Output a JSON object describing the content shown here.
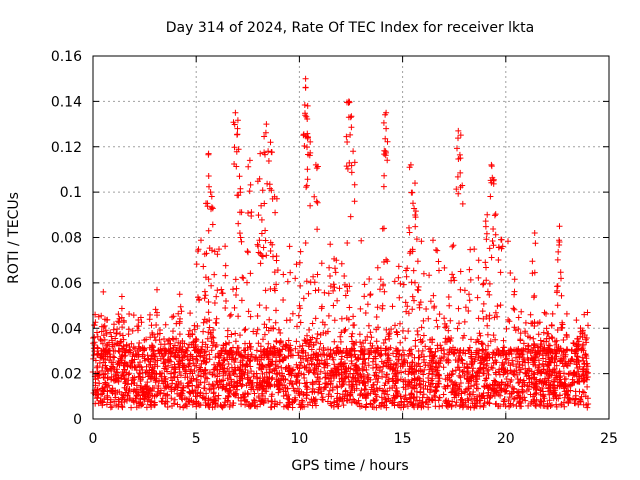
{
  "chart_data": {
    "type": "scatter",
    "title": "Day 314 of 2024, Rate Of TEC Index for receiver lkta",
    "xlabel": "GPS time / hours",
    "ylabel": "ROTI / TECUs",
    "xlim": [
      0,
      25
    ],
    "ylim": [
      0,
      0.16
    ],
    "x_ticks": [
      "0",
      "5",
      "10",
      "15",
      "20",
      "25"
    ],
    "y_ticks": [
      "0",
      "0.02",
      "0.04",
      "0.06",
      "0.08",
      "0.1",
      "0.12",
      "0.14",
      "0.16"
    ],
    "x_tick_values": [
      0,
      5,
      10,
      15,
      20,
      25
    ],
    "y_tick_values": [
      0,
      0.02,
      0.04,
      0.06,
      0.08,
      0.1,
      0.12,
      0.14,
      0.16
    ],
    "grid": true,
    "marker": "+",
    "color": "#ff0000",
    "x_data_range": [
      0,
      24
    ],
    "dense_band": [
      0.005,
      0.03
    ],
    "highlight_points": [
      {
        "x": 0.1,
        "y": 0.046
      },
      {
        "x": 0.5,
        "y": 0.056
      },
      {
        "x": 1.4,
        "y": 0.054
      },
      {
        "x": 3.1,
        "y": 0.057
      },
      {
        "x": 4.2,
        "y": 0.055
      },
      {
        "x": 5.6,
        "y": 0.117
      },
      {
        "x": 5.7,
        "y": 0.1
      },
      {
        "x": 5.5,
        "y": 0.073
      },
      {
        "x": 6.9,
        "y": 0.135
      },
      {
        "x": 7.0,
        "y": 0.128
      },
      {
        "x": 7.1,
        "y": 0.107
      },
      {
        "x": 7.6,
        "y": 0.114
      },
      {
        "x": 8.1,
        "y": 0.117
      },
      {
        "x": 8.4,
        "y": 0.13
      },
      {
        "x": 8.6,
        "y": 0.122
      },
      {
        "x": 8.3,
        "y": 0.095
      },
      {
        "x": 8.8,
        "y": 0.098
      },
      {
        "x": 10.3,
        "y": 0.15
      },
      {
        "x": 10.3,
        "y": 0.146
      },
      {
        "x": 10.4,
        "y": 0.138
      },
      {
        "x": 10.4,
        "y": 0.124
      },
      {
        "x": 10.8,
        "y": 0.112
      },
      {
        "x": 12.4,
        "y": 0.14
      },
      {
        "x": 12.4,
        "y": 0.133
      },
      {
        "x": 12.6,
        "y": 0.118
      },
      {
        "x": 14.2,
        "y": 0.135
      },
      {
        "x": 14.2,
        "y": 0.128
      },
      {
        "x": 14.1,
        "y": 0.084
      },
      {
        "x": 15.4,
        "y": 0.112
      },
      {
        "x": 15.6,
        "y": 0.104
      },
      {
        "x": 17.7,
        "y": 0.127
      },
      {
        "x": 17.8,
        "y": 0.115
      },
      {
        "x": 19.3,
        "y": 0.112
      },
      {
        "x": 19.4,
        "y": 0.105
      },
      {
        "x": 19.1,
        "y": 0.09
      },
      {
        "x": 21.4,
        "y": 0.082
      },
      {
        "x": 22.6,
        "y": 0.085
      },
      {
        "x": 22.6,
        "y": 0.078
      },
      {
        "x": 23.8,
        "y": 0.046
      }
    ]
  }
}
